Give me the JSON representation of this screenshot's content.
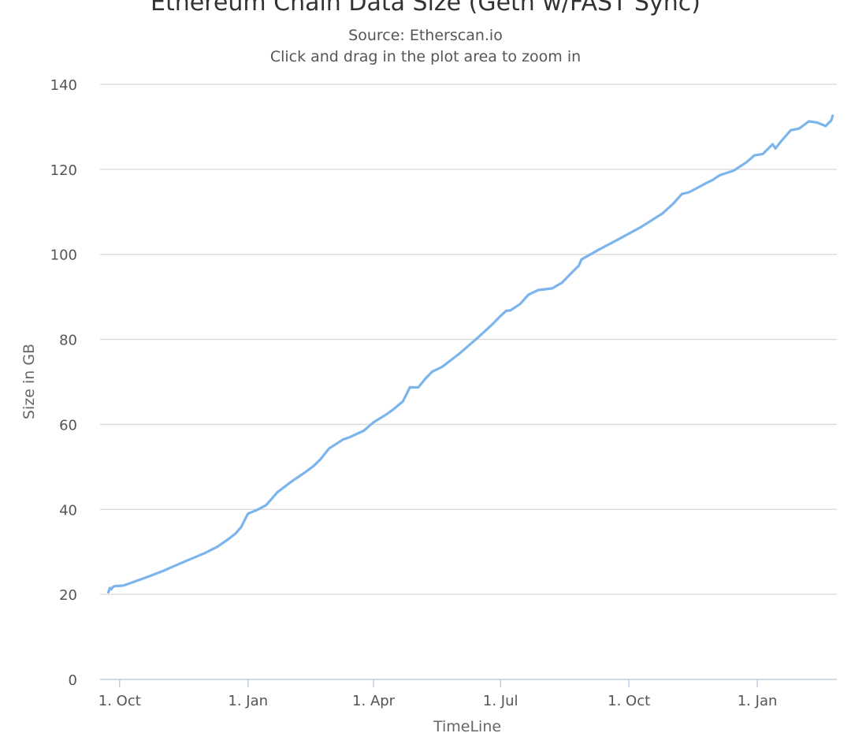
{
  "chart_data": {
    "type": "line",
    "title": "Ethereum Chain Data Size (Geth w/FAST Sync)",
    "subtitle": "Source: Etherscan.io",
    "subtitle_hint": "Click and drag in the plot area to zoom in",
    "xlabel": "TimeLine",
    "ylabel": "Size in GB",
    "ylim": [
      0,
      140
    ],
    "yticks": [
      0,
      20,
      40,
      60,
      80,
      100,
      120,
      140
    ],
    "xlim": [
      "2017-09-17",
      "2019-02-27"
    ],
    "xticks": [
      {
        "date": "2017-10-01",
        "label": "1. Oct"
      },
      {
        "date": "2018-01-01",
        "label": "1. Jan"
      },
      {
        "date": "2018-04-01",
        "label": "1. Apr"
      },
      {
        "date": "2018-07-01",
        "label": "1. Jul"
      },
      {
        "date": "2018-10-01",
        "label": "1. Oct"
      },
      {
        "date": "2019-01-01",
        "label": "1. Jan"
      }
    ],
    "grid": true,
    "line_color": "#7cb5ec",
    "series": [
      {
        "x": [
          "2017-09-23",
          "2017-09-24",
          "2017-09-25",
          "2017-09-26",
          "2017-09-28",
          "2017-10-01",
          "2017-10-04",
          "2017-10-10",
          "2017-10-20",
          "2017-11-01",
          "2017-11-15",
          "2017-12-01",
          "2017-12-10",
          "2017-12-18",
          "2017-12-23",
          "2017-12-27",
          "2018-01-01",
          "2018-01-07",
          "2018-01-14",
          "2018-01-22",
          "2018-02-01",
          "2018-02-10",
          "2018-02-17",
          "2018-02-22",
          "2018-02-28",
          "2018-03-10",
          "2018-03-15",
          "2018-03-25",
          "2018-04-01",
          "2018-04-10",
          "2018-04-15",
          "2018-04-22",
          "2018-04-27",
          "2018-05-03",
          "2018-05-08",
          "2018-05-13",
          "2018-05-20",
          "2018-06-01",
          "2018-06-15",
          "2018-06-25",
          "2018-07-01",
          "2018-07-05",
          "2018-07-08",
          "2018-07-15",
          "2018-07-21",
          "2018-07-28",
          "2018-08-07",
          "2018-08-14",
          "2018-08-22",
          "2018-08-25",
          "2018-08-26",
          "2018-08-28",
          "2018-09-10",
          "2018-09-25",
          "2018-10-10",
          "2018-10-25",
          "2018-11-02",
          "2018-11-08",
          "2018-11-13",
          "2018-11-20",
          "2018-11-25",
          "2018-11-30",
          "2018-12-05",
          "2018-12-15",
          "2018-12-24",
          "2018-12-30",
          "2019-01-05",
          "2019-01-12",
          "2019-01-14",
          "2019-01-18",
          "2019-01-25",
          "2019-01-31",
          "2019-02-07",
          "2019-02-13",
          "2019-02-19",
          "2019-02-23",
          "2019-02-24"
        ],
        "values": [
          20.5,
          21.5,
          21.2,
          21.7,
          22.0,
          22.0,
          22.1,
          22.8,
          24.0,
          25.5,
          27.5,
          29.7,
          31.2,
          33.0,
          34.3,
          35.8,
          39.0,
          39.8,
          41.0,
          44.0,
          46.5,
          48.5,
          50.2,
          51.8,
          54.3,
          56.4,
          57.0,
          58.5,
          60.5,
          62.3,
          63.5,
          65.4,
          68.7,
          68.7,
          70.7,
          72.4,
          73.5,
          76.5,
          80.5,
          83.5,
          85.5,
          86.7,
          86.8,
          88.3,
          90.5,
          91.6,
          92.0,
          93.3,
          96.0,
          97.0,
          97.3,
          98.8,
          101.2,
          103.8,
          106.5,
          109.6,
          112.0,
          114.2,
          114.6,
          115.8,
          116.7,
          117.5,
          118.6,
          119.7,
          121.6,
          123.3,
          123.6,
          125.9,
          124.9,
          126.6,
          129.2,
          129.6,
          131.3,
          131.0,
          130.2,
          131.5,
          132.6
        ]
      }
    ]
  }
}
